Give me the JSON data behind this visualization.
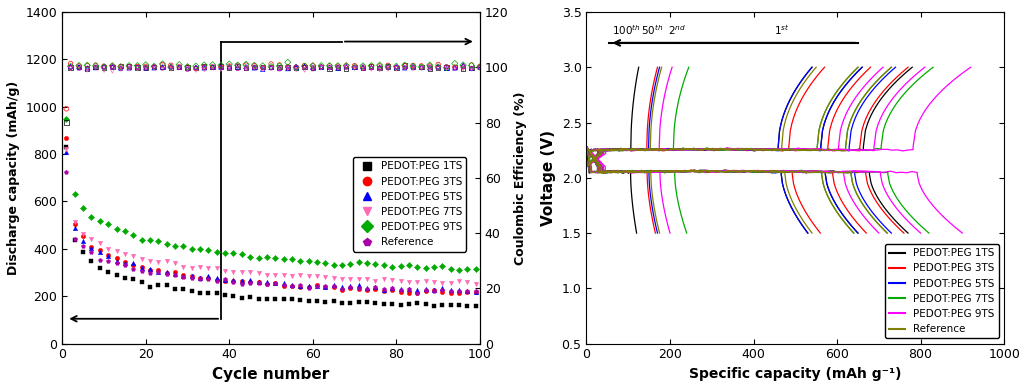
{
  "left": {
    "xlabel": "Cycle number",
    "ylabel_left": "Discharge capacity (mAh/g)",
    "ylabel_right": "Coulombic Efficiency (%)",
    "xlim": [
      0,
      100
    ],
    "ylim_left": [
      0,
      1400
    ],
    "ylim_right": [
      0,
      120
    ],
    "xticks": [
      0,
      20,
      40,
      60,
      80,
      100
    ],
    "yticks_left": [
      0,
      200,
      400,
      600,
      800,
      1000,
      1200,
      1400
    ],
    "yticks_right": [
      0,
      20,
      40,
      60,
      80,
      100,
      120
    ],
    "series": [
      {
        "label": "PEDOT:PEG 1TS",
        "color": "#000000",
        "marker": "s",
        "cap_start": 760,
        "cap_end": 120,
        "decay": 2.8
      },
      {
        "label": "PEDOT:PEG 3TS",
        "color": "#ff0000",
        "marker": "o",
        "cap_start": 820,
        "cap_end": 165,
        "decay": 2.6
      },
      {
        "label": "PEDOT:PEG 5TS",
        "color": "#0000ff",
        "marker": "^",
        "cap_start": 760,
        "cap_end": 175,
        "decay": 2.5
      },
      {
        "label": "PEDOT:PEG 7TS",
        "color": "#ff69b4",
        "marker": "v",
        "cap_start": 770,
        "cap_end": 200,
        "decay": 2.3
      },
      {
        "label": "PEDOT:PEG 9TS",
        "color": "#00aa00",
        "marker": "D",
        "cap_start": 900,
        "cap_end": 220,
        "decay": 2.0
      },
      {
        "label": "Reference",
        "color": "#aa00aa",
        "marker": "p",
        "cap_start": 680,
        "cap_end": 175,
        "decay": 2.4
      }
    ],
    "ce_series": [
      {
        "label": "PEDOT:PEG 1TS",
        "color": "#000000",
        "marker": "s",
        "ce_mean": 100.0,
        "ce_std": 0.3
      },
      {
        "label": "PEDOT:PEG 3TS",
        "color": "#ff0000",
        "marker": "o",
        "ce_mean": 100.5,
        "ce_std": 0.4
      },
      {
        "label": "PEDOT:PEG 5TS",
        "color": "#0000ff",
        "marker": "^",
        "ce_mean": 100.0,
        "ce_std": 0.3
      },
      {
        "label": "PEDOT:PEG 7TS",
        "color": "#ff69b4",
        "marker": "v",
        "ce_mean": 99.5,
        "ce_std": 0.4
      },
      {
        "label": "PEDOT:PEG 9TS",
        "color": "#00aa00",
        "marker": "D",
        "ce_mean": 100.5,
        "ce_std": 0.4
      },
      {
        "label": "Reference",
        "color": "#aa00aa",
        "marker": "p",
        "ce_mean": 99.8,
        "ce_std": 0.3
      }
    ]
  },
  "right": {
    "xlabel": "Specific capacity (mAh g⁻¹)",
    "ylabel": "Voltage (V)",
    "xlim": [
      0,
      1000
    ],
    "ylim": [
      0.5,
      3.5
    ],
    "xticks": [
      0,
      200,
      400,
      600,
      800,
      1000
    ],
    "yticks": [
      0.5,
      1.0,
      1.5,
      2.0,
      2.5,
      3.0,
      3.5
    ],
    "series": [
      {
        "label": "PEDOT:PEG 1TS",
        "color": "#000000",
        "caps_dis": [
          120,
          530,
          650,
          770
        ],
        "caps_chg": [
          125,
          540,
          660,
          780
        ]
      },
      {
        "label": "PEDOT:PEG 3TS",
        "color": "#ff0000",
        "caps_dis": [
          165,
          560,
          670,
          760
        ],
        "caps_chg": [
          170,
          570,
          680,
          770
        ]
      },
      {
        "label": "PEDOT:PEG 5TS",
        "color": "#0000ff",
        "caps_dis": [
          170,
          530,
          650,
          730
        ],
        "caps_chg": [
          175,
          540,
          660,
          740
        ]
      },
      {
        "label": "PEDOT:PEG 7TS",
        "color": "#00aa00",
        "caps_dis": [
          240,
          640,
          720,
          820
        ],
        "caps_chg": [
          245,
          650,
          730,
          830
        ]
      },
      {
        "label": "PEDOT:PEG 9TS",
        "color": "#ff00ff",
        "caps_dis": [
          200,
          700,
          800,
          900
        ],
        "caps_chg": [
          205,
          710,
          810,
          920
        ]
      },
      {
        "label": "Reference",
        "color": "#808000",
        "caps_dis": [
          175,
          540,
          640,
          720
        ],
        "caps_chg": [
          180,
          550,
          650,
          730
        ]
      }
    ]
  }
}
